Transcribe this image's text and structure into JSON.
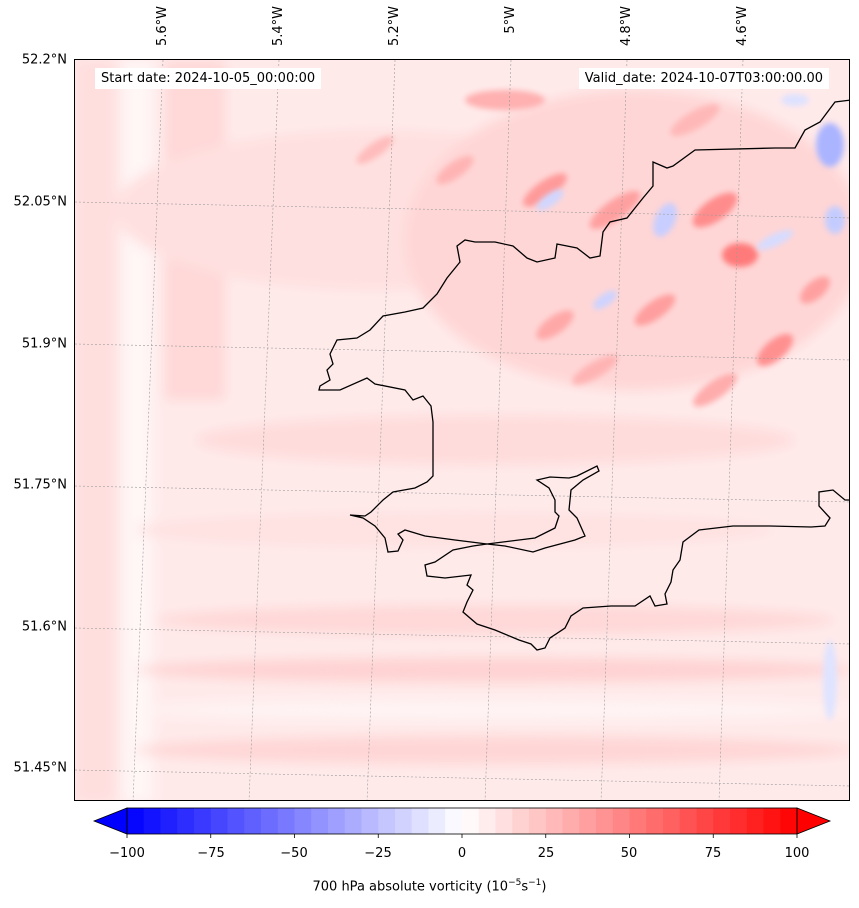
{
  "map": {
    "start_date": "Start date: 2024-10-05_00:00:00",
    "valid_date": "Valid_date: 2024-10-07T03:00:00.00",
    "lat_labels": [
      "52.2°N",
      "52.05°N",
      "51.9°N",
      "51.75°N",
      "51.6°N",
      "51.45°N"
    ],
    "lon_labels": [
      "5.6°W",
      "5.4°W",
      "5.2°W",
      "5°W",
      "4.8°W",
      "4.6°W"
    ],
    "field_colors": {
      "negative": "#3b3bff",
      "neutral": "#ffffff",
      "positive": "#ff2020"
    },
    "coastline_color": "#000000"
  },
  "colorbar": {
    "ticks": [
      "−100",
      "−75",
      "−50",
      "−25",
      "0",
      "25",
      "50",
      "75",
      "100"
    ],
    "label_main": "700 hPa absolute vorticity (10",
    "label_exp1": "−5",
    "label_mid": "s",
    "label_exp2": "−1",
    "label_end": ")",
    "min": -100,
    "max": 100,
    "min_color": "#0000ff",
    "max_color": "#ff0000"
  }
}
